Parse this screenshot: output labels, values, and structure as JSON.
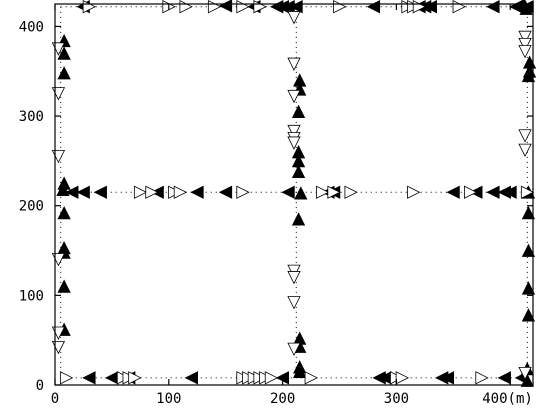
{
  "chart_data": {
    "type": "scatter",
    "title": "",
    "xlabel": "",
    "ylabel": "",
    "x_unit_label": "(m)",
    "xlim": [
      0,
      420
    ],
    "ylim": [
      0,
      425
    ],
    "grid": false,
    "x_ticks": [
      0,
      100,
      200,
      300,
      400
    ],
    "y_ticks": [
      0,
      100,
      200,
      300,
      400
    ],
    "roads": [
      {
        "x1": 5,
        "y1": 8,
        "x2": 5,
        "y2": 422
      },
      {
        "x1": 212,
        "y1": 8,
        "x2": 212,
        "y2": 422
      },
      {
        "x1": 415,
        "y1": 8,
        "x2": 415,
        "y2": 422
      },
      {
        "x1": 5,
        "y1": 8,
        "x2": 415,
        "y2": 8
      },
      {
        "x1": 5,
        "y1": 215,
        "x2": 415,
        "y2": 215
      },
      {
        "x1": 5,
        "y1": 422,
        "x2": 415,
        "y2": 422
      }
    ],
    "series": [
      {
        "marker": "filled-triangle-up",
        "points": [
          [
            8,
            384
          ],
          [
            8,
            370
          ],
          [
            8,
            348
          ],
          [
            8,
            225
          ],
          [
            7,
            218
          ],
          [
            8,
            192
          ],
          [
            8,
            153
          ],
          [
            8,
            148
          ],
          [
            8,
            110
          ],
          [
            8,
            62
          ],
          [
            215,
            340
          ],
          [
            215,
            330
          ],
          [
            214,
            305
          ],
          [
            214,
            260
          ],
          [
            214,
            250
          ],
          [
            214,
            238
          ],
          [
            216,
            214
          ],
          [
            214,
            185
          ],
          [
            215,
            52
          ],
          [
            215,
            43
          ],
          [
            215,
            20
          ],
          [
            215,
            15
          ],
          [
            412,
            425
          ],
          [
            414,
            420
          ],
          [
            417,
            360
          ],
          [
            417,
            350
          ],
          [
            416,
            345
          ],
          [
            416,
            215
          ],
          [
            416,
            192
          ],
          [
            416,
            150
          ],
          [
            416,
            108
          ],
          [
            416,
            78
          ],
          [
            415,
            18
          ],
          [
            415,
            5
          ]
        ]
      },
      {
        "marker": "filled-triangle-left",
        "points": [
          [
            25,
            422
          ],
          [
            150,
            423
          ],
          [
            175,
            422
          ],
          [
            195,
            422
          ],
          [
            200,
            422
          ],
          [
            205,
            422
          ],
          [
            212,
            422
          ],
          [
            280,
            422
          ],
          [
            320,
            422
          ],
          [
            325,
            422
          ],
          [
            330,
            422
          ],
          [
            385,
            422
          ],
          [
            405,
            422
          ],
          [
            415,
            422
          ],
          [
            15,
            215
          ],
          [
            25,
            215
          ],
          [
            40,
            215
          ],
          [
            90,
            215
          ],
          [
            125,
            215
          ],
          [
            150,
            215
          ],
          [
            205,
            215
          ],
          [
            240,
            215
          ],
          [
            245,
            215
          ],
          [
            350,
            215
          ],
          [
            370,
            215
          ],
          [
            385,
            215
          ],
          [
            395,
            215
          ],
          [
            400,
            215
          ],
          [
            30,
            8
          ],
          [
            50,
            8
          ],
          [
            65,
            8
          ],
          [
            120,
            8
          ],
          [
            200,
            8
          ],
          [
            285,
            8
          ],
          [
            290,
            8
          ],
          [
            340,
            8
          ],
          [
            345,
            8
          ],
          [
            395,
            8
          ],
          [
            410,
            8
          ]
        ]
      },
      {
        "marker": "open-triangle-right",
        "points": [
          [
            30,
            422
          ],
          [
            100,
            422
          ],
          [
            115,
            422
          ],
          [
            140,
            422
          ],
          [
            165,
            422
          ],
          [
            180,
            422
          ],
          [
            250,
            422
          ],
          [
            310,
            422
          ],
          [
            315,
            422
          ],
          [
            320,
            422
          ],
          [
            355,
            422
          ],
          [
            75,
            215
          ],
          [
            85,
            215
          ],
          [
            105,
            215
          ],
          [
            110,
            215
          ],
          [
            165,
            215
          ],
          [
            235,
            215
          ],
          [
            245,
            215
          ],
          [
            260,
            215
          ],
          [
            315,
            215
          ],
          [
            365,
            215
          ],
          [
            415,
            215
          ],
          [
            10,
            8
          ],
          [
            60,
            8
          ],
          [
            65,
            8
          ],
          [
            70,
            8
          ],
          [
            165,
            8
          ],
          [
            170,
            8
          ],
          [
            175,
            8
          ],
          [
            180,
            8
          ],
          [
            185,
            8
          ],
          [
            190,
            8
          ],
          [
            225,
            8
          ],
          [
            300,
            8
          ],
          [
            305,
            8
          ],
          [
            375,
            8
          ]
        ]
      },
      {
        "marker": "open-triangle-down",
        "points": [
          [
            3,
            375
          ],
          [
            3,
            325
          ],
          [
            3,
            255
          ],
          [
            3,
            140
          ],
          [
            3,
            58
          ],
          [
            3,
            42
          ],
          [
            210,
            410
          ],
          [
            210,
            358
          ],
          [
            210,
            322
          ],
          [
            210,
            283
          ],
          [
            210,
            275
          ],
          [
            210,
            270
          ],
          [
            210,
            127
          ],
          [
            210,
            120
          ],
          [
            210,
            92
          ],
          [
            210,
            40
          ],
          [
            413,
            388
          ],
          [
            413,
            380
          ],
          [
            413,
            372
          ],
          [
            413,
            278
          ],
          [
            413,
            262
          ],
          [
            413,
            13
          ]
        ]
      }
    ]
  }
}
